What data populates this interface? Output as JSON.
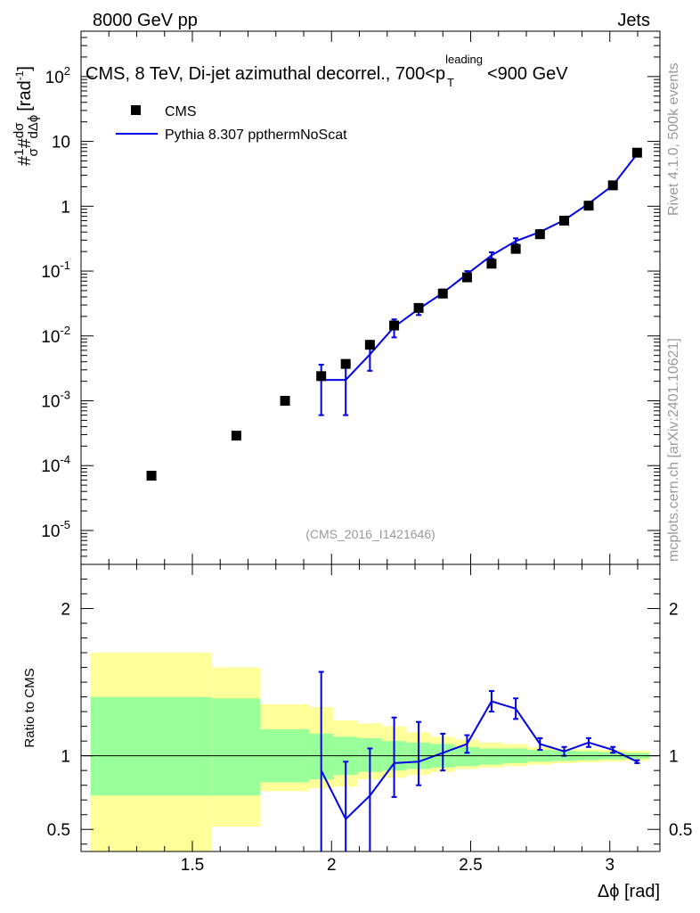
{
  "header": {
    "left": "8000 GeV pp",
    "right": "Jets"
  },
  "plot_title": {
    "main": "CMS, 8 TeV, Di-jet azimuthal decorrel., 700<p",
    "sup": "leading",
    "sub": "T",
    "tail": "<900 GeV"
  },
  "side_text": {
    "rivet": "Rivet 4.1.0,  500k events",
    "mcplots": "mcplots.cern.ch [arXiv:2401.10621]"
  },
  "analysis_id": "(CMS_2016_I1421646)",
  "y_label_main": {
    "prefix": "#",
    "one": "1",
    "sigma": "σ",
    "hash2": "#",
    "dsigma": "dσ",
    "dphi": "dΔϕ",
    "unit": "[rad",
    "unit_sup": "-1",
    "unit_close": "]"
  },
  "y_label_ratio": "Ratio to CMS",
  "x_label": "Δϕ [rad]",
  "legend": {
    "data": "CMS",
    "mc": "Pythia 8.307 ppthermNoScat"
  },
  "chart_data": {
    "type": "scatter",
    "x_label": "Δϕ [rad]",
    "x_range": [
      1.1,
      3.18
    ],
    "x_ticks": [
      "1.5",
      "2",
      "2.5",
      "3"
    ],
    "main": {
      "y_scale": "log",
      "y_range": [
        3e-06,
        500
      ],
      "y_ticks": [
        {
          "base": "10",
          "exp": "-5"
        },
        {
          "base": "10",
          "exp": "-4"
        },
        {
          "base": "10",
          "exp": "-3"
        },
        {
          "base": "10",
          "exp": "-2"
        },
        {
          "base": "10",
          "exp": "-1"
        },
        {
          "base": "1",
          "exp": ""
        },
        {
          "base": "10",
          "exp": ""
        },
        {
          "base": "10",
          "exp": "2"
        }
      ],
      "series": [
        {
          "name": "CMS",
          "style": "markers",
          "x": [
            1.353,
            1.658,
            1.833,
            1.963,
            2.051,
            2.138,
            2.225,
            2.313,
            2.4,
            2.487,
            2.575,
            2.662,
            2.749,
            2.836,
            2.924,
            3.011,
            3.098
          ],
          "y": [
            7e-05,
            0.00029,
            0.001,
            0.0024,
            0.0037,
            0.0073,
            0.0145,
            0.027,
            0.045,
            0.08,
            0.13,
            0.22,
            0.37,
            0.6,
            1.02,
            2.1,
            6.7
          ]
        },
        {
          "name": "Pythia 8.307 ppthermNoScat",
          "style": "line",
          "x": [
            1.963,
            2.051,
            2.138,
            2.225,
            2.313,
            2.4,
            2.487,
            2.575,
            2.662,
            2.749,
            2.836,
            2.924,
            3.011,
            3.098
          ],
          "y": [
            0.0021,
            0.0021,
            0.0052,
            0.0138,
            0.026,
            0.046,
            0.09,
            0.175,
            0.29,
            0.4,
            0.61,
            1.1,
            2.1,
            6.4
          ],
          "err_lo": [
            0.0006,
            0.0006,
            0.0029,
            0.0095,
            0.021,
            0.04,
            0.08,
            0.155,
            0.26,
            0.37,
            0.575,
            1.06,
            2.03,
            6.2
          ],
          "err_hi": [
            0.0036,
            0.0036,
            0.0076,
            0.018,
            0.031,
            0.052,
            0.1,
            0.195,
            0.32,
            0.43,
            0.645,
            1.14,
            2.17,
            6.6
          ]
        }
      ]
    },
    "ratio": {
      "y_label": "Ratio to CMS",
      "y_range": [
        0.35,
        2.3
      ],
      "y_ticks": [
        "0.5",
        "1",
        "2"
      ],
      "reference": 1,
      "bins": [
        {
          "lo": 1.134,
          "hi": 1.571,
          "y1": 0.73,
          "y2": 1.4,
          "g1": 0.2,
          "g2": 1.7
        },
        {
          "lo": 1.571,
          "hi": 1.745,
          "y1": 0.73,
          "y2": 1.39,
          "g1": 0.52,
          "g2": 1.6
        },
        {
          "lo": 1.745,
          "hi": 1.92,
          "y1": 0.82,
          "y2": 1.18,
          "g1": 0.76,
          "g2": 1.35
        },
        {
          "lo": 1.92,
          "hi": 2.007,
          "y1": 0.84,
          "y2": 1.15,
          "g1": 0.78,
          "g2": 1.33
        },
        {
          "lo": 2.007,
          "hi": 2.094,
          "y1": 0.87,
          "y2": 1.13,
          "g1": 0.79,
          "g2": 1.24
        },
        {
          "lo": 2.094,
          "hi": 2.182,
          "y1": 0.89,
          "y2": 1.12,
          "g1": 0.84,
          "g2": 1.22
        },
        {
          "lo": 2.182,
          "hi": 2.269,
          "y1": 0.9,
          "y2": 1.1,
          "g1": 0.85,
          "g2": 1.2
        },
        {
          "lo": 2.269,
          "hi": 2.356,
          "y1": 0.91,
          "y2": 1.09,
          "g1": 0.87,
          "g2": 1.16
        },
        {
          "lo": 2.356,
          "hi": 2.443,
          "y1": 0.92,
          "y2": 1.08,
          "g1": 0.89,
          "g2": 1.13
        },
        {
          "lo": 2.443,
          "hi": 2.531,
          "y1": 0.93,
          "y2": 1.06,
          "g1": 0.91,
          "g2": 1.11
        },
        {
          "lo": 2.531,
          "hi": 2.618,
          "y1": 0.94,
          "y2": 1.05,
          "g1": 0.92,
          "g2": 1.09
        },
        {
          "lo": 2.618,
          "hi": 2.705,
          "y1": 0.95,
          "y2": 1.05,
          "g1": 0.93,
          "g2": 1.08
        },
        {
          "lo": 2.705,
          "hi": 2.793,
          "y1": 0.96,
          "y2": 1.04,
          "g1": 0.94,
          "g2": 1.06
        },
        {
          "lo": 2.793,
          "hi": 2.88,
          "y1": 0.965,
          "y2": 1.035,
          "g1": 0.95,
          "g2": 1.05
        },
        {
          "lo": 2.88,
          "hi": 2.967,
          "y1": 0.97,
          "y2": 1.03,
          "g1": 0.955,
          "g2": 1.045
        },
        {
          "lo": 2.967,
          "hi": 3.054,
          "y1": 0.975,
          "y2": 1.025,
          "g1": 0.96,
          "g2": 1.04
        },
        {
          "lo": 3.054,
          "hi": 3.142,
          "y1": 0.98,
          "y2": 1.02,
          "g1": 0.965,
          "g2": 1.035
        }
      ],
      "mc_ratio": {
        "x": [
          1.963,
          2.051,
          2.138,
          2.225,
          2.313,
          2.4,
          2.487,
          2.575,
          2.662,
          2.749,
          2.836,
          2.924,
          3.011,
          3.098
        ],
        "y": [
          0.9,
          0.57,
          0.73,
          0.95,
          0.96,
          1.02,
          1.08,
          1.37,
          1.32,
          1.08,
          1.03,
          1.09,
          1.04,
          0.96
        ],
        "err_lo": [
          0.25,
          0.25,
          0.31,
          0.72,
          0.8,
          0.9,
          1.02,
          1.3,
          1.25,
          1.04,
          1.0,
          1.06,
          1.02,
          0.95
        ],
        "err_hi": [
          1.57,
          0.96,
          1.05,
          1.26,
          1.23,
          1.15,
          1.14,
          1.44,
          1.39,
          1.12,
          1.06,
          1.12,
          1.06,
          0.97
        ]
      }
    }
  }
}
